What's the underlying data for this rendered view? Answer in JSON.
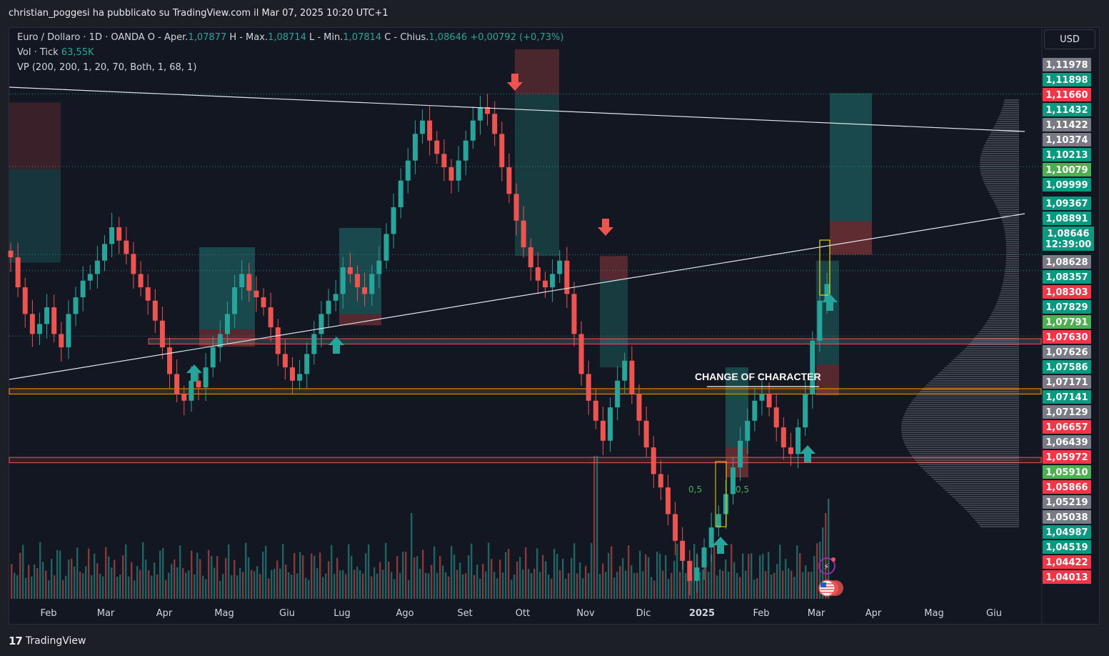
{
  "header": {
    "publisher_line": "christian_poggesi ha pubblicato su TradingView.com il Mar 07, 2025 10:20 UTC+1"
  },
  "legend": {
    "symbol": "Euro / Dollaro · 1D · OANDA",
    "open_label": "O - Aper.",
    "open_value": "1,07877",
    "high_label": "H - Max.",
    "high_value": "1,08714",
    "low_label": "L - Min.",
    "low_value": "1,07814",
    "close_label": "C - Chius.",
    "close_value": "1,08646",
    "change_value": "+0,00792 (+0,73%)",
    "volume_label": "Vol · Tick",
    "volume_value": "63,55K",
    "vp_label": "VP (200, 200, 1, 20, 70, Both, 1, 68, 1)"
  },
  "toolbar": {
    "currency": "USD"
  },
  "footer": {
    "brand": "TradingView",
    "logo_mark": "17"
  },
  "colors": {
    "background": "#131722",
    "up": "#26a69a",
    "down": "#ef5350",
    "grid": "#2a2e39",
    "text": "#d1d4dc",
    "orange_zone": "#ff9800"
  },
  "chart_data": {
    "type": "candlestick",
    "symbol": "EUR/USD",
    "interval": "1D",
    "x_labels": [
      "Feb",
      "Mar",
      "Apr",
      "Mag",
      "Giu",
      "Lug",
      "Ago",
      "Set",
      "Ott",
      "Nov",
      "Dic",
      "2025",
      "Feb",
      "Mar",
      "Apr",
      "Mag",
      "Giu"
    ],
    "ylim": [
      1.0393,
      1.1205
    ],
    "price_axis_labels": [
      {
        "text": "1,11978",
        "value": 1.11978,
        "color": "#787b86"
      },
      {
        "text": "1,11898",
        "value": 1.11898,
        "color": "#089981"
      },
      {
        "text": "1,11660",
        "value": 1.1166,
        "color": "#f23645"
      },
      {
        "text": "1,11432",
        "value": 1.11432,
        "color": "#089981"
      },
      {
        "text": "1,11422",
        "value": 1.11422,
        "color": "#787b86"
      },
      {
        "text": "1,10374",
        "value": 1.10374,
        "color": "#787b86"
      },
      {
        "text": "1,10213",
        "value": 1.10213,
        "color": "#089981"
      },
      {
        "text": "1,10079",
        "value": 1.10079,
        "color": "#4caf50"
      },
      {
        "text": "1,09999",
        "value": 1.09999,
        "color": "#089981"
      },
      {
        "text": "1,09367",
        "value": 1.09367,
        "color": "#089981"
      },
      {
        "text": "1,08891",
        "value": 1.08891,
        "color": "#089981"
      },
      {
        "text": "1,08646",
        "value": 1.08646,
        "color": "#089981"
      },
      {
        "text": "12:39:00",
        "value": 1.0847,
        "color": "#089981"
      },
      {
        "text": "1,08628",
        "value": 1.08628,
        "color": "#787b86"
      },
      {
        "text": "1,08357",
        "value": 1.08357,
        "color": "#089981"
      },
      {
        "text": "1,08303",
        "value": 1.08303,
        "color": "#f23645"
      },
      {
        "text": "1,07829",
        "value": 1.07829,
        "color": "#089981"
      },
      {
        "text": "1,07791",
        "value": 1.07791,
        "color": "#4caf50"
      },
      {
        "text": "1,07630",
        "value": 1.0763,
        "color": "#f23645"
      },
      {
        "text": "1,07626",
        "value": 1.07626,
        "color": "#787b86"
      },
      {
        "text": "1,07586",
        "value": 1.07586,
        "color": "#089981"
      },
      {
        "text": "1,07171",
        "value": 1.07171,
        "color": "#787b86"
      },
      {
        "text": "1,07141",
        "value": 1.07141,
        "color": "#089981"
      },
      {
        "text": "1,07129",
        "value": 1.07129,
        "color": "#787b86"
      },
      {
        "text": "1,06657",
        "value": 1.06657,
        "color": "#f23645"
      },
      {
        "text": "1,06439",
        "value": 1.06439,
        "color": "#787b86"
      },
      {
        "text": "1,05972",
        "value": 1.05972,
        "color": "#f23645"
      },
      {
        "text": "1,05910",
        "value": 1.0591,
        "color": "#4caf50"
      },
      {
        "text": "1,05866",
        "value": 1.05866,
        "color": "#f23645"
      },
      {
        "text": "1,05219",
        "value": 1.05219,
        "color": "#787b86"
      },
      {
        "text": "1,05038",
        "value": 1.05038,
        "color": "#787b86"
      },
      {
        "text": "1,04987",
        "value": 1.04987,
        "color": "#089981"
      },
      {
        "text": "1,04519",
        "value": 1.04519,
        "color": "#089981"
      },
      {
        "text": "1,04422",
        "value": 1.04422,
        "color": "#f23645"
      },
      {
        "text": "1,04013",
        "value": 1.04013,
        "color": "#f23645"
      }
    ],
    "approx_closes": [
      1.0905,
      1.086,
      1.082,
      1.079,
      1.0805,
      1.083,
      1.079,
      1.077,
      1.082,
      1.0845,
      1.087,
      1.088,
      1.09,
      1.0925,
      1.095,
      1.093,
      1.091,
      1.088,
      1.086,
      1.084,
      1.081,
      1.077,
      1.073,
      1.07,
      1.069,
      1.072,
      1.071,
      1.074,
      1.077,
      1.079,
      1.082,
      1.086,
      1.088,
      1.0855,
      1.0845,
      1.083,
      1.08,
      1.076,
      1.074,
      1.072,
      1.073,
      1.076,
      1.079,
      1.082,
      1.084,
      1.085,
      1.089,
      1.088,
      1.086,
      1.085,
      1.088,
      1.09,
      1.094,
      1.098,
      1.102,
      1.105,
      1.109,
      1.111,
      1.108,
      1.106,
      1.104,
      1.102,
      1.105,
      1.108,
      1.111,
      1.113,
      1.112,
      1.109,
      1.104,
      1.1,
      1.096,
      1.092,
      1.089,
      1.087,
      1.086,
      1.088,
      1.09,
      1.085,
      1.079,
      1.073,
      1.069,
      1.066,
      1.063,
      1.068,
      1.072,
      1.075,
      1.07,
      1.066,
      1.062,
      1.058,
      1.056,
      1.052,
      1.048,
      1.045,
      1.042,
      1.044,
      1.047,
      1.05,
      1.052,
      1.055,
      1.059,
      1.063,
      1.066,
      1.069,
      1.07,
      1.068,
      1.065,
      1.062,
      1.061,
      1.065,
      1.07,
      1.078,
      1.084,
      1.0865
    ],
    "volume_profile": "VP (200, 200, 1, 20, 70, Both, 1, 68, 1)",
    "annotations": [
      {
        "type": "text",
        "text": "CHANGE OF CHARACTER"
      },
      {
        "type": "fib-label",
        "text": "0,5"
      },
      {
        "type": "fib-label",
        "text": "0,5"
      }
    ],
    "grid": false,
    "legend_position": "top-left"
  }
}
